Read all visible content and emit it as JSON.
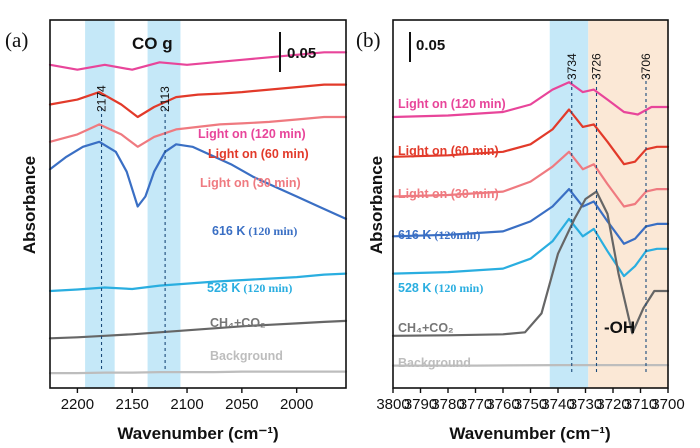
{
  "chart_data": [
    {
      "type": "line",
      "panel": "(a)",
      "xlabel": "Wavenumber (cm⁻¹)",
      "ylabel": "Absorbance",
      "xlim": [
        2225,
        1955
      ],
      "x_ticks": [
        2200,
        2150,
        2100,
        2050,
        2000
      ],
      "scale_bar": "0.05",
      "band_label": "CO g",
      "bands": [
        [
          2193,
          2166
        ],
        [
          2136,
          2106
        ]
      ],
      "peaks": [
        {
          "label": "2174",
          "x": 2178
        },
        {
          "label": "2113",
          "x": 2120
        }
      ],
      "series": [
        {
          "name": "Light on (120 min)",
          "color": "#e8459a",
          "x": [
            2225,
            2200,
            2175,
            2150,
            2125,
            2100,
            2075,
            2050,
            2025,
            2000,
            1975,
            1955
          ],
          "y": [
            0.93,
            0.92,
            0.93,
            0.92,
            0.935,
            0.93,
            0.935,
            0.94,
            0.945,
            0.95,
            0.955,
            0.955
          ]
        },
        {
          "name": "Light on (60 min)",
          "color": "#e23a2a",
          "x": [
            2225,
            2200,
            2180,
            2160,
            2145,
            2130,
            2110,
            2090,
            2070,
            2050,
            2025,
            2000,
            1975,
            1955
          ],
          "y": [
            0.85,
            0.86,
            0.875,
            0.85,
            0.825,
            0.845,
            0.865,
            0.87,
            0.872,
            0.875,
            0.88,
            0.885,
            0.89,
            0.89
          ]
        },
        {
          "name": "Light on (30 min)",
          "color": "#ef7a80",
          "x": [
            2225,
            2200,
            2180,
            2160,
            2145,
            2130,
            2110,
            2090,
            2070,
            2050,
            2025,
            2000,
            1975,
            1955
          ],
          "y": [
            0.775,
            0.79,
            0.81,
            0.79,
            0.765,
            0.785,
            0.8,
            0.805,
            0.81,
            0.812,
            0.815,
            0.82,
            0.825,
            0.825
          ]
        },
        {
          "name": "616 K",
          "name_suffix": "(120 min)",
          "color": "#3a6fc4",
          "x": [
            2225,
            2210,
            2195,
            2180,
            2165,
            2155,
            2145,
            2138,
            2130,
            2120,
            2110,
            2095,
            2080,
            2060,
            2040,
            2020,
            2000,
            1980,
            1955
          ],
          "y": [
            0.72,
            0.745,
            0.765,
            0.775,
            0.755,
            0.715,
            0.645,
            0.665,
            0.715,
            0.755,
            0.77,
            0.765,
            0.75,
            0.73,
            0.705,
            0.685,
            0.665,
            0.645,
            0.62
          ]
        },
        {
          "name": "528 K",
          "name_suffix": "(120 min)",
          "color": "#2aaee0",
          "x": [
            2225,
            2200,
            2175,
            2150,
            2125,
            2100,
            2075,
            2050,
            2025,
            2000,
            1975,
            1955
          ],
          "y": [
            0.475,
            0.478,
            0.482,
            0.479,
            0.486,
            0.49,
            0.494,
            0.497,
            0.5,
            0.503,
            0.508,
            0.51
          ]
        },
        {
          "name": "CH₄+CO₂",
          "color": "#666666",
          "x": [
            2225,
            2200,
            2175,
            2150,
            2125,
            2100,
            2075,
            2050,
            2025,
            2000,
            1975,
            1955
          ],
          "y": [
            0.38,
            0.382,
            0.385,
            0.388,
            0.392,
            0.396,
            0.4,
            0.404,
            0.407,
            0.41,
            0.413,
            0.415
          ]
        },
        {
          "name": "Background",
          "color": "#bdbdbd",
          "x": [
            2225,
            2200,
            2175,
            2150,
            2125,
            2100,
            2075,
            2050,
            2025,
            2000,
            1975,
            1955
          ],
          "y": [
            0.31,
            0.31,
            0.311,
            0.311,
            0.312,
            0.312,
            0.312,
            0.313,
            0.313,
            0.313,
            0.313,
            0.313
          ]
        }
      ]
    },
    {
      "type": "line",
      "panel": "(b)",
      "xlabel": "Wavenumber (cm⁻¹)",
      "ylabel": "Absorbance",
      "xlim": [
        3800,
        3700
      ],
      "x_ticks": [
        3800,
        3790,
        3780,
        3770,
        3760,
        3750,
        3740,
        3730,
        3720,
        3710,
        3700
      ],
      "scale_bar": "0.05",
      "band_label": "-OH",
      "bands": [
        [
          3743,
          3729
        ],
        [
          3729,
          3700
        ]
      ],
      "peaks": [
        {
          "label": "3734",
          "x": 3735
        },
        {
          "label": "3726",
          "x": 3726
        },
        {
          "label": "3706",
          "x": 3708
        }
      ],
      "series": [
        {
          "name": "Light on (120 min)",
          "color": "#e8459a",
          "x": [
            3800,
            3780,
            3760,
            3750,
            3742,
            3736,
            3731,
            3727,
            3722,
            3716,
            3711,
            3706,
            3700
          ],
          "y": [
            0.825,
            0.828,
            0.835,
            0.85,
            0.88,
            0.895,
            0.875,
            0.88,
            0.86,
            0.835,
            0.83,
            0.845,
            0.845
          ]
        },
        {
          "name": "Light on (60 min)",
          "color": "#e23a2a",
          "x": [
            3800,
            3780,
            3760,
            3750,
            3742,
            3736,
            3731,
            3727,
            3722,
            3716,
            3712,
            3708,
            3704,
            3700
          ],
          "y": [
            0.745,
            0.748,
            0.755,
            0.77,
            0.8,
            0.84,
            0.805,
            0.81,
            0.775,
            0.73,
            0.735,
            0.76,
            0.765,
            0.765
          ]
        },
        {
          "name": "Light on (30 min)",
          "color": "#ef7a80",
          "x": [
            3800,
            3780,
            3760,
            3750,
            3742,
            3736,
            3731,
            3727,
            3722,
            3716,
            3712,
            3708,
            3704,
            3700
          ],
          "y": [
            0.665,
            0.668,
            0.675,
            0.695,
            0.725,
            0.755,
            0.72,
            0.73,
            0.69,
            0.645,
            0.65,
            0.675,
            0.68,
            0.68
          ]
        },
        {
          "name": "616 K",
          "name_suffix": "(120min)",
          "color": "#3a6fc4",
          "x": [
            3800,
            3780,
            3760,
            3750,
            3742,
            3736,
            3731,
            3727,
            3722,
            3716,
            3712,
            3708,
            3704,
            3700
          ],
          "y": [
            0.585,
            0.588,
            0.595,
            0.615,
            0.645,
            0.68,
            0.645,
            0.655,
            0.615,
            0.57,
            0.58,
            0.605,
            0.61,
            0.61
          ]
        },
        {
          "name": "528 K",
          "name_suffix": "(120 min)",
          "color": "#2aaee0",
          "x": [
            3800,
            3780,
            3760,
            3750,
            3742,
            3736,
            3731,
            3727,
            3722,
            3716,
            3712,
            3708,
            3704,
            3700
          ],
          "y": [
            0.51,
            0.513,
            0.52,
            0.54,
            0.575,
            0.62,
            0.585,
            0.6,
            0.555,
            0.505,
            0.525,
            0.555,
            0.56,
            0.56
          ]
        },
        {
          "name": "CH₄+CO₂",
          "color": "#666666",
          "x": [
            3800,
            3780,
            3760,
            3752,
            3746,
            3740,
            3734,
            3730,
            3726,
            3722,
            3718,
            3713,
            3709,
            3705,
            3700
          ],
          "y": [
            0.385,
            0.386,
            0.388,
            0.392,
            0.43,
            0.55,
            0.62,
            0.66,
            0.675,
            0.63,
            0.51,
            0.39,
            0.44,
            0.475,
            0.475
          ]
        },
        {
          "name": "Background",
          "color": "#bdbdbd",
          "x": [
            3800,
            3770,
            3740,
            3720,
            3700
          ],
          "y": [
            0.325,
            0.325,
            0.326,
            0.326,
            0.326
          ]
        }
      ]
    }
  ]
}
